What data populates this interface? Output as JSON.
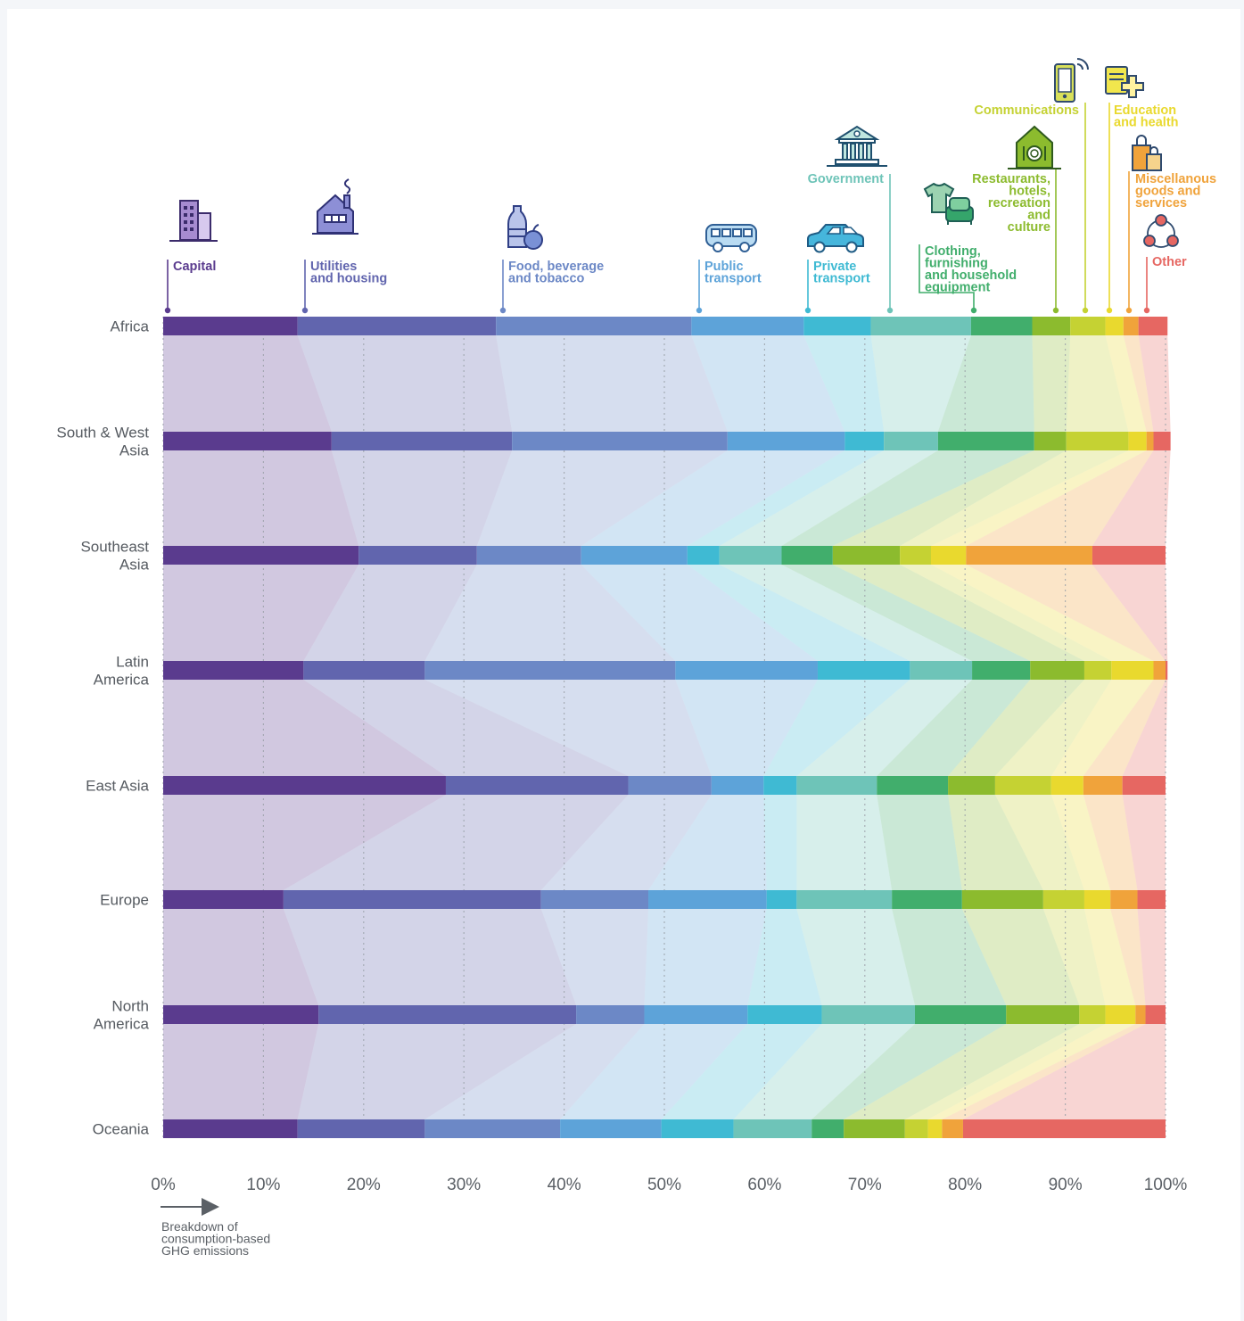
{
  "chart_data": {
    "type": "bar",
    "stacked": "100%",
    "orientation": "horizontal",
    "xlabel": "Breakdown of consumption-based GHG emissions",
    "xlim": [
      0,
      100
    ],
    "x_ticks": [
      "0%",
      "10%",
      "20%",
      "30%",
      "40%",
      "50%",
      "60%",
      "70%",
      "80%",
      "90%",
      "100%"
    ],
    "grid": "vertical dotted",
    "region_labels": [
      [
        "Africa"
      ],
      [
        "South & West",
        "Asia"
      ],
      [
        "Southeast",
        "Asia"
      ],
      [
        "Latin",
        "America"
      ],
      [
        "East Asia"
      ],
      [
        "Europe"
      ],
      [
        "North",
        "America"
      ],
      [
        "Oceania"
      ]
    ],
    "categories": [
      {
        "label": [
          "Capital"
        ],
        "color": "#5a3b8e",
        "icon": "office-building-icon"
      },
      {
        "label": [
          "Utilities",
          "and housing"
        ],
        "color": "#6165ae",
        "icon": "house-factory-icon"
      },
      {
        "label": [
          "Food, beverage",
          "and tobacco"
        ],
        "color": "#6c88c6",
        "icon": "bottle-apple-icon"
      },
      {
        "label": [
          "Public",
          "transport"
        ],
        "color": "#5da3d9",
        "icon": "bus-icon"
      },
      {
        "label": [
          "Private",
          "transport"
        ],
        "color": "#3fbad3",
        "icon": "car-icon"
      },
      {
        "label": [
          "Government"
        ],
        "color": "#6ec4b8",
        "icon": "government-building-icon"
      },
      {
        "label": [
          "Clothing,",
          "furnishing",
          "and household",
          "equipment"
        ],
        "color": "#41ae6c",
        "icon": "shirt-armchair-icon"
      },
      {
        "label": [
          "Restaurants,",
          "hotels,",
          "recreation",
          "and",
          "culture"
        ],
        "color": "#8cbb2e",
        "icon": "restaurant-icon"
      },
      {
        "label": [
          "Communications"
        ],
        "color": "#c5d233",
        "icon": "mobile-phone-icon"
      },
      {
        "label": [
          "Education",
          "and health"
        ],
        "color": "#e9d92e",
        "icon": "book-health-icon"
      },
      {
        "label": [
          "Miscellanous",
          "goods and",
          "services"
        ],
        "color": "#f0a33b",
        "icon": "shopping-bags-icon"
      },
      {
        "label": [
          "Other"
        ],
        "color": "#e66762",
        "icon": "network-circles-icon"
      }
    ],
    "series_values": [
      [
        13.4,
        19.8,
        19.5,
        11.2,
        6.7,
        10.0,
        6.1,
        3.8,
        3.5,
        1.8,
        1.5,
        2.9
      ],
      [
        16.8,
        18.0,
        21.5,
        11.7,
        3.9,
        5.4,
        9.6,
        3.2,
        6.2,
        1.8,
        0.7,
        1.7
      ],
      [
        19.5,
        11.8,
        10.4,
        10.6,
        3.2,
        6.2,
        5.1,
        6.7,
        3.1,
        3.5,
        12.6,
        7.3
      ],
      [
        14.0,
        12.1,
        25.0,
        14.2,
        9.2,
        6.2,
        5.8,
        5.4,
        2.7,
        4.2,
        1.2,
        0.2
      ],
      [
        28.2,
        18.2,
        8.3,
        5.2,
        3.3,
        8.0,
        7.1,
        4.7,
        5.6,
        3.2,
        3.9,
        4.3
      ],
      [
        12.0,
        25.7,
        10.7,
        11.8,
        3.0,
        9.5,
        7.0,
        8.1,
        4.1,
        2.6,
        2.7,
        2.8
      ],
      [
        15.5,
        25.7,
        6.8,
        10.3,
        7.4,
        9.3,
        9.1,
        7.3,
        2.6,
        3.0,
        1.0,
        2.0
      ],
      [
        13.4,
        12.7,
        13.5,
        10.1,
        7.2,
        7.8,
        3.2,
        6.1,
        2.3,
        1.4,
        2.1,
        20.2
      ]
    ]
  }
}
